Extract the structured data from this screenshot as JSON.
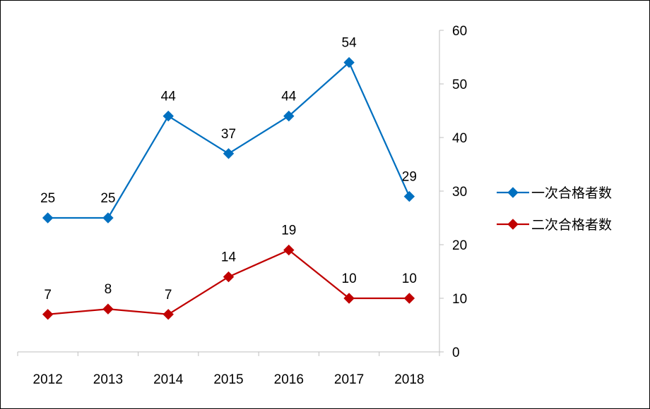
{
  "chart_data": {
    "type": "line",
    "categories": [
      "2012",
      "2013",
      "2014",
      "2015",
      "2016",
      "2017",
      "2018"
    ],
    "series": [
      {
        "name": "一次合格者数",
        "values": [
          25,
          25,
          44,
          37,
          44,
          54,
          29
        ],
        "color": "#0070C0"
      },
      {
        "name": "二次合格者数",
        "values": [
          7,
          8,
          7,
          14,
          19,
          10,
          10
        ],
        "color": "#C00000"
      }
    ],
    "ylim": [
      0,
      60
    ],
    "yticks": [
      0,
      10,
      20,
      30,
      40,
      50,
      60
    ],
    "y_axis_side": "right",
    "grid": false,
    "legend_position": "right",
    "marker": "diamond",
    "data_labels": true
  }
}
